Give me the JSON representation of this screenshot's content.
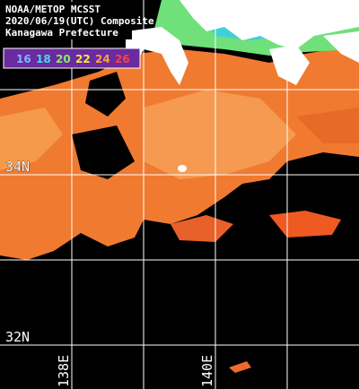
{
  "header": {
    "lines": [
      "NOAA/METOP MCSST",
      "2020/06/19(UTC) Composite",
      "Kanagawa Prefecture"
    ]
  },
  "color_scale": {
    "labels": [
      "16",
      "18",
      "20",
      "22",
      "24",
      "26"
    ]
  },
  "latitude_labels": [
    "34N",
    "32N"
  ],
  "longitude_labels": [
    "138E",
    "140E"
  ]
}
